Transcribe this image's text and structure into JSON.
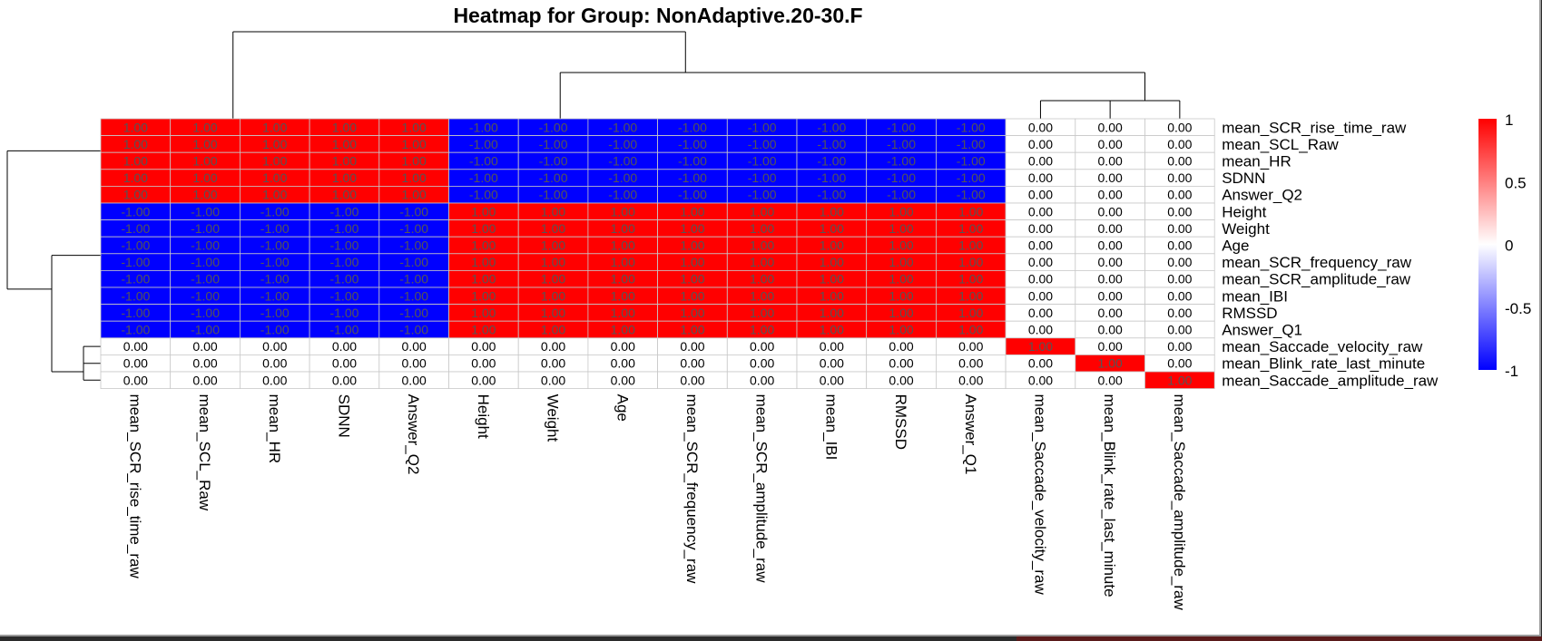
{
  "chart_data": {
    "type": "heatmap",
    "title": "Heatmap for Group: NonAdaptive.20-30.F",
    "row_labels": [
      "mean_SCR_rise_time_raw",
      "mean_SCL_Raw",
      "mean_HR",
      "SDNN",
      "Answer_Q2",
      "Height",
      "Weight",
      "Age",
      "mean_SCR_frequency_raw",
      "mean_SCR_amplitude_raw",
      "mean_IBI",
      "RMSSD",
      "Answer_Q1",
      "mean_Saccade_velocity_raw",
      "mean_Blink_rate_last_minute",
      "mean_Saccade_amplitude_raw"
    ],
    "col_labels": [
      "mean_SCR_rise_time_raw",
      "mean_SCL_Raw",
      "mean_HR",
      "SDNN",
      "Answer_Q2",
      "Height",
      "Weight",
      "Age",
      "mean_SCR_frequency_raw",
      "mean_SCR_amplitude_raw",
      "mean_IBI",
      "RMSSD",
      "Answer_Q1",
      "mean_Saccade_velocity_raw",
      "mean_Blink_rate_last_minute",
      "mean_Saccade_amplitude_raw"
    ],
    "values": [
      [
        1,
        1,
        1,
        1,
        1,
        -1,
        -1,
        -1,
        -1,
        -1,
        -1,
        -1,
        -1,
        0,
        0,
        0
      ],
      [
        1,
        1,
        1,
        1,
        1,
        -1,
        -1,
        -1,
        -1,
        -1,
        -1,
        -1,
        -1,
        0,
        0,
        0
      ],
      [
        1,
        1,
        1,
        1,
        1,
        -1,
        -1,
        -1,
        -1,
        -1,
        -1,
        -1,
        -1,
        0,
        0,
        0
      ],
      [
        1,
        1,
        1,
        1,
        1,
        -1,
        -1,
        -1,
        -1,
        -1,
        -1,
        -1,
        -1,
        0,
        0,
        0
      ],
      [
        1,
        1,
        1,
        1,
        1,
        -1,
        -1,
        -1,
        -1,
        -1,
        -1,
        -1,
        -1,
        0,
        0,
        0
      ],
      [
        -1,
        -1,
        -1,
        -1,
        -1,
        1,
        1,
        1,
        1,
        1,
        1,
        1,
        1,
        0,
        0,
        0
      ],
      [
        -1,
        -1,
        -1,
        -1,
        -1,
        1,
        1,
        1,
        1,
        1,
        1,
        1,
        1,
        0,
        0,
        0
      ],
      [
        -1,
        -1,
        -1,
        -1,
        -1,
        1,
        1,
        1,
        1,
        1,
        1,
        1,
        1,
        0,
        0,
        0
      ],
      [
        -1,
        -1,
        -1,
        -1,
        -1,
        1,
        1,
        1,
        1,
        1,
        1,
        1,
        1,
        0,
        0,
        0
      ],
      [
        -1,
        -1,
        -1,
        -1,
        -1,
        1,
        1,
        1,
        1,
        1,
        1,
        1,
        1,
        0,
        0,
        0
      ],
      [
        -1,
        -1,
        -1,
        -1,
        -1,
        1,
        1,
        1,
        1,
        1,
        1,
        1,
        1,
        0,
        0,
        0
      ],
      [
        -1,
        -1,
        -1,
        -1,
        -1,
        1,
        1,
        1,
        1,
        1,
        1,
        1,
        1,
        0,
        0,
        0
      ],
      [
        -1,
        -1,
        -1,
        -1,
        -1,
        1,
        1,
        1,
        1,
        1,
        1,
        1,
        1,
        0,
        0,
        0
      ],
      [
        0,
        0,
        0,
        0,
        0,
        0,
        0,
        0,
        0,
        0,
        0,
        0,
        0,
        1,
        0,
        0
      ],
      [
        0,
        0,
        0,
        0,
        0,
        0,
        0,
        0,
        0,
        0,
        0,
        0,
        0,
        0,
        1,
        0
      ],
      [
        0,
        0,
        0,
        0,
        0,
        0,
        0,
        0,
        0,
        0,
        0,
        0,
        0,
        0,
        0,
        1
      ]
    ],
    "number_format": "0.00",
    "color_scale": {
      "low": "#0000ff",
      "mid": "#ffffff",
      "high": "#ff0000",
      "range": [
        -1,
        1
      ]
    },
    "legend": {
      "ticks": [
        "1",
        "0.5",
        "0",
        "-0.5",
        "-1"
      ],
      "tick_values": [
        1,
        0.5,
        0,
        -0.5,
        -1
      ],
      "placement": "right"
    },
    "dendrogram": {
      "rows": "left",
      "cols": "top"
    }
  }
}
